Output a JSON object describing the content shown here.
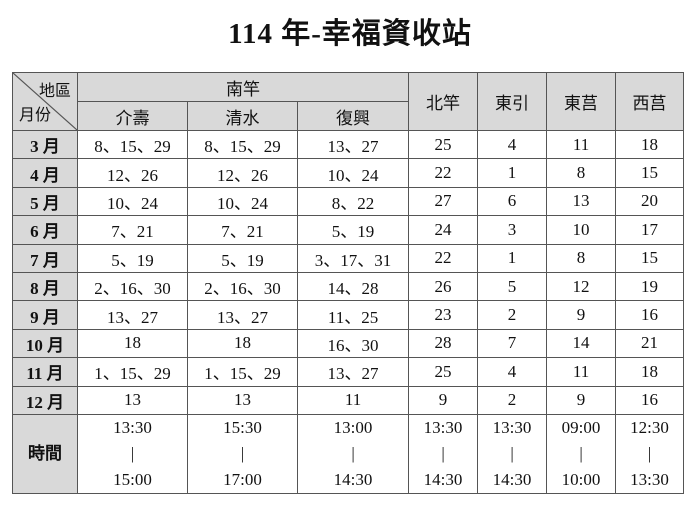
{
  "title": "114 年-幸福資收站",
  "header": {
    "corner_top": "地區",
    "corner_bottom": "月份",
    "group": "南竿",
    "sub_areas": [
      "介壽",
      "清水",
      "復興"
    ],
    "areas": [
      "北竿",
      "東引",
      "東莒",
      "西莒"
    ]
  },
  "rows": [
    {
      "month": "3 月",
      "cells": [
        "8、15、29",
        "8、15、29",
        "13、27",
        "25",
        "4",
        "11",
        "18"
      ]
    },
    {
      "month": "4 月",
      "cells": [
        "12、26",
        "12、26",
        "10、24",
        "22",
        "1",
        "8",
        "15"
      ]
    },
    {
      "month": "5 月",
      "cells": [
        "10、24",
        "10、24",
        "8、22",
        "27",
        "6",
        "13",
        "20"
      ]
    },
    {
      "month": "6 月",
      "cells": [
        "7、21",
        "7、21",
        "5、19",
        "24",
        "3",
        "10",
        "17"
      ]
    },
    {
      "month": "7 月",
      "cells": [
        "5、19",
        "5、19",
        "3、17、31",
        "22",
        "1",
        "8",
        "15"
      ]
    },
    {
      "month": "8 月",
      "cells": [
        "2、16、30",
        "2、16、30",
        "14、28",
        "26",
        "5",
        "12",
        "19"
      ]
    },
    {
      "month": "9 月",
      "cells": [
        "13、27",
        "13、27",
        "11、25",
        "23",
        "2",
        "9",
        "16"
      ]
    },
    {
      "month": "10 月",
      "cells": [
        "18",
        "18",
        "16、30",
        "28",
        "7",
        "14",
        "21"
      ]
    },
    {
      "month": "11 月",
      "cells": [
        "1、15、29",
        "1、15、29",
        "13、27",
        "25",
        "4",
        "11",
        "18"
      ]
    },
    {
      "month": "12 月",
      "cells": [
        "13",
        "13",
        "11",
        "9",
        "2",
        "9",
        "16"
      ]
    }
  ],
  "time": {
    "label": "時間",
    "separator": "|",
    "slots": [
      {
        "start": "13:30",
        "end": "15:00"
      },
      {
        "start": "15:30",
        "end": "17:00"
      },
      {
        "start": "13:00",
        "end": "14:30"
      },
      {
        "start": "13:30",
        "end": "14:30"
      },
      {
        "start": "13:30",
        "end": "14:30"
      },
      {
        "start": "09:00",
        "end": "10:00"
      },
      {
        "start": "12:30",
        "end": "13:30"
      }
    ]
  }
}
